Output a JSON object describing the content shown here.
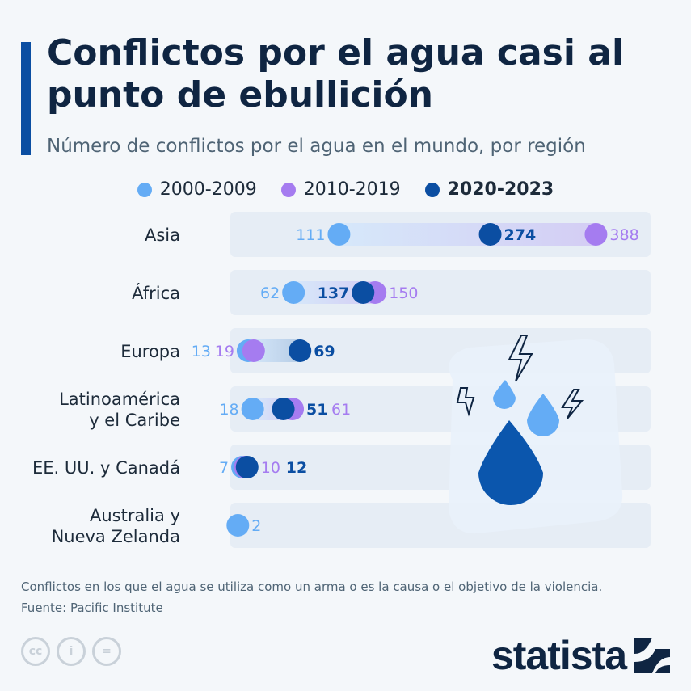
{
  "header": {
    "title": "Conflictos por el agua casi al punto de ebullición",
    "subtitle": "Número de conflictos por el agua en el mundo, por región"
  },
  "chart_data": {
    "type": "dumbbell",
    "categories": [
      "Asia",
      "África",
      "Europa",
      "Latinoamérica y el Caribe",
      "EE. UU. y Canadá",
      "Australia y Nueva Zelanda"
    ],
    "category_lines": [
      [
        "Asia"
      ],
      [
        "África"
      ],
      [
        "Europa"
      ],
      [
        "Latinoamérica",
        "y el Caribe"
      ],
      [
        "EE. UU. y Canadá"
      ],
      [
        "Australia y",
        "Nueva Zelanda"
      ]
    ],
    "series": [
      {
        "name": "2000-2009",
        "color": "#64acf5",
        "values": [
          111,
          62,
          13,
          18,
          7,
          2
        ]
      },
      {
        "name": "2010-2019",
        "color": "#a57cf0",
        "values": [
          388,
          150,
          19,
          61,
          10,
          null
        ]
      },
      {
        "name": "2020-2023",
        "color": "#0b4ea2",
        "values": [
          274,
          137,
          69,
          51,
          12,
          null
        ]
      }
    ],
    "legend_position": "top",
    "grid": false
  },
  "footer": {
    "note": "Conflictos en los que el agua se utiliza como un arma o es la causa o el objetivo de la violencia.",
    "source": "Fuente: Pacific Institute",
    "brand": "statista",
    "license_icons": [
      "cc",
      "by",
      "nd"
    ]
  }
}
